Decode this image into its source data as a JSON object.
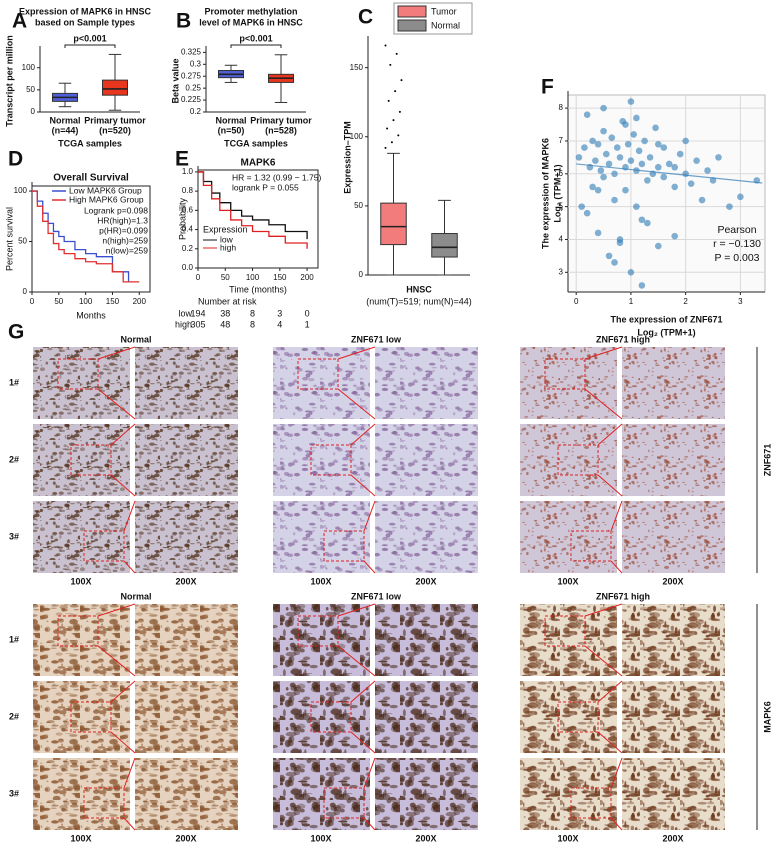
{
  "panel_labels": [
    "A",
    "B",
    "C",
    "D",
    "E",
    "F",
    "G"
  ],
  "chart_data": [
    {
      "type": "box",
      "title_lines": [
        "Expression of MAPK6 in HNSC",
        "based on Sample types"
      ],
      "ylabel": "Transcript per million",
      "xlabel": "TCGA samples",
      "categories": [
        "Normal",
        "Primary tumor"
      ],
      "sample_sizes": [
        "(n=44)",
        "(n=520)"
      ],
      "annotation": "p<0.001",
      "ylim": [
        0,
        140
      ],
      "yticks": [
        0,
        50,
        100
      ],
      "boxes": [
        {
          "min": 12,
          "q1": 24,
          "median": 33,
          "q3": 42,
          "max": 65,
          "color": "#4f5fd8"
        },
        {
          "min": 4,
          "q1": 38,
          "median": 52,
          "q3": 72,
          "max": 130,
          "color": "#e8361e"
        }
      ]
    },
    {
      "type": "box",
      "title_lines": [
        "Promoter methylation",
        "level of MAPK6 in HNSC"
      ],
      "ylabel": "Beta value",
      "xlabel": "TCGA samples",
      "categories": [
        "Normal",
        "Primary tumor"
      ],
      "sample_sizes": [
        "(n=50)",
        "(n=528)"
      ],
      "annotation": "p<0.001",
      "ylim": [
        0.2,
        0.33
      ],
      "yticks": [
        0.2,
        0.225,
        0.25,
        0.275,
        0.3,
        0.325
      ],
      "boxes": [
        {
          "min": 0.262,
          "q1": 0.272,
          "median": 0.279,
          "q3": 0.287,
          "max": 0.298,
          "color": "#4f5fd8"
        },
        {
          "min": 0.22,
          "q1": 0.262,
          "median": 0.271,
          "q3": 0.279,
          "max": 0.32,
          "color": "#e8361e"
        }
      ]
    },
    {
      "type": "box",
      "ylabel": "Expression–TPM",
      "xlabel": "HNSC",
      "subtitle": "(num(T)=519; num(N)=44)",
      "legend": "upper right",
      "ylim": [
        0,
        170
      ],
      "yticks": [
        0,
        50,
        100,
        150
      ],
      "boxes": [
        {
          "name": "Tumor",
          "min": 0,
          "q1": 22,
          "median": 35,
          "q3": 52,
          "max": 88,
          "color": "#f27b7b",
          "outliers": [
            92,
            96,
            101,
            106,
            112,
            118,
            126,
            133,
            141,
            152,
            160,
            166
          ]
        },
        {
          "name": "Normal",
          "min": 0,
          "q1": 13,
          "median": 20,
          "q3": 30,
          "max": 54,
          "color": "#8c8c8c"
        }
      ]
    },
    {
      "type": "survival",
      "title": "Overall Survival",
      "ylabel": "Percent survival",
      "xlabel": "Months",
      "xlim": [
        0,
        220
      ],
      "ylim": [
        0,
        105
      ],
      "xticks": [
        0,
        50,
        100,
        150,
        200
      ],
      "yticks": [
        0,
        50,
        100
      ],
      "legend": "upper right",
      "annotations": [
        "Logrank p=0.098",
        "HR(high)=1.3",
        "p(HR)=0.099",
        "n(high)=259",
        "n(low)=259"
      ],
      "series": [
        {
          "name": "Low MAPK6 Group",
          "color": "#3a4fd0",
          "x": [
            0,
            10,
            20,
            30,
            40,
            50,
            60,
            80,
            100,
            120,
            150,
            170,
            180
          ],
          "y": [
            100,
            90,
            78,
            68,
            60,
            55,
            50,
            42,
            38,
            35,
            20,
            20,
            10
          ]
        },
        {
          "name": "High MAPK6 Group",
          "color": "#e03030",
          "x": [
            0,
            10,
            20,
            30,
            40,
            50,
            60,
            80,
            100,
            120,
            150,
            170,
            200
          ],
          "y": [
            100,
            85,
            70,
            58,
            48,
            42,
            38,
            33,
            30,
            28,
            20,
            10,
            10
          ]
        }
      ]
    },
    {
      "type": "survival",
      "title": "MAPK6",
      "ylabel": "Probability",
      "xlabel": "Time (months)",
      "xlim": [
        0,
        220
      ],
      "ylim": [
        0,
        1.02
      ],
      "xticks": [
        0,
        50,
        100,
        150,
        200
      ],
      "yticks": [
        {
          "value": 0,
          "label": "0.0"
        },
        0.2,
        0.4,
        0.6,
        0.8,
        {
          "value": 1,
          "label": "1.0"
        }
      ],
      "legend": "lower left",
      "legend_title": "Expression",
      "annotations": [
        "HR = 1.32 (0.99 − 1.75)",
        "logrank P = 0.055"
      ],
      "risk_title": "Number at risk",
      "series": [
        {
          "name": "low",
          "color": "#111111",
          "x": [
            0,
            10,
            25,
            40,
            60,
            80,
            100,
            130,
            160,
            200
          ],
          "y": [
            1,
            0.9,
            0.78,
            0.68,
            0.6,
            0.54,
            0.5,
            0.45,
            0.38,
            0.3
          ],
          "at_risk": [
            194,
            38,
            8,
            3,
            0
          ]
        },
        {
          "name": "high",
          "color": "#e02020",
          "x": [
            0,
            10,
            25,
            40,
            60,
            80,
            100,
            130,
            160,
            200
          ],
          "y": [
            1,
            0.86,
            0.72,
            0.6,
            0.5,
            0.44,
            0.38,
            0.33,
            0.26,
            0.2
          ],
          "at_risk": [
            305,
            48,
            8,
            4,
            1
          ]
        }
      ]
    },
    {
      "type": "scatter",
      "ylabel_lines": [
        "The expression of MAPK6",
        "Log₂ (TPM+1)"
      ],
      "xlabel_lines": [
        "The expression of ZNF671",
        "Log₂ (TPM+1)"
      ],
      "annotations": [
        "Pearson",
        "r = −0.130",
        "P = 0.003"
      ],
      "annotation_color": "#2f6fa8",
      "color": "#2f7bb6",
      "grid": true,
      "xlim": [
        -0.15,
        3.45
      ],
      "ylim": [
        2.4,
        8.4
      ],
      "xticks": [
        0,
        1,
        2,
        3
      ],
      "yticks": [
        3,
        4,
        5,
        6,
        7,
        8
      ],
      "x": [
        0.05,
        0.1,
        0.15,
        0.2,
        0.25,
        0.3,
        0.3,
        0.35,
        0.4,
        0.4,
        0.45,
        0.5,
        0.5,
        0.55,
        0.6,
        0.6,
        0.65,
        0.7,
        0.7,
        0.75,
        0.8,
        0.8,
        0.85,
        0.9,
        0.9,
        0.95,
        1.0,
        1.0,
        1.05,
        1.1,
        1.1,
        1.15,
        1.2,
        1.2,
        1.25,
        1.3,
        1.3,
        1.35,
        1.4,
        1.45,
        1.5,
        1.5,
        1.6,
        1.6,
        1.7,
        1.8,
        1.8,
        1.9,
        2.0,
        2.0,
        2.1,
        2.2,
        2.3,
        2.4,
        2.5,
        2.6,
        2.8,
        3.0,
        3.3,
        0.2,
        0.5,
        0.7,
        0.9,
        1.0,
        1.2,
        1.5,
        1.8,
        0.4,
        0.8,
        1.1
      ],
      "y": [
        6.5,
        5.0,
        6.8,
        4.8,
        6.2,
        7.0,
        5.6,
        6.4,
        6.9,
        4.2,
        6.1,
        7.3,
        5.9,
        6.6,
        6.3,
        3.5,
        7.1,
        6.0,
        5.2,
        6.8,
        6.5,
        4.0,
        7.6,
        6.2,
        5.5,
        6.9,
        6.4,
        3.0,
        7.2,
        6.1,
        5.0,
        6.7,
        6.3,
        2.6,
        7.0,
        5.8,
        4.5,
        6.5,
        6.0,
        7.4,
        6.2,
        3.8,
        5.9,
        6.8,
        6.3,
        5.6,
        4.1,
        6.6,
        6.0,
        7.0,
        5.7,
        6.4,
        5.2,
        6.1,
        5.8,
        6.5,
        5.0,
        5.3,
        5.8,
        7.8,
        8.0,
        3.3,
        7.5,
        8.2,
        4.6,
        6.9,
        6.2,
        5.5,
        3.9,
        7.7
      ],
      "fit": {
        "x": [
          0,
          3.4
        ],
        "y": [
          6.3,
          5.72
        ]
      }
    }
  ],
  "ihc": {
    "blocks": [
      {
        "stain": "ZNF671",
        "columns": [
          "Normal",
          "ZNF671 low",
          "ZNF671 high"
        ],
        "rows": [
          "1#",
          "2#",
          "3#"
        ],
        "magnifications": [
          "100X",
          "200X"
        ]
      },
      {
        "stain": "MAPK6",
        "columns": [
          "Normal",
          "ZNF671 low",
          "ZNF671 high"
        ],
        "rows": [
          "1#",
          "2#",
          "3#"
        ],
        "magnifications": [
          "100X",
          "200X"
        ]
      }
    ]
  }
}
